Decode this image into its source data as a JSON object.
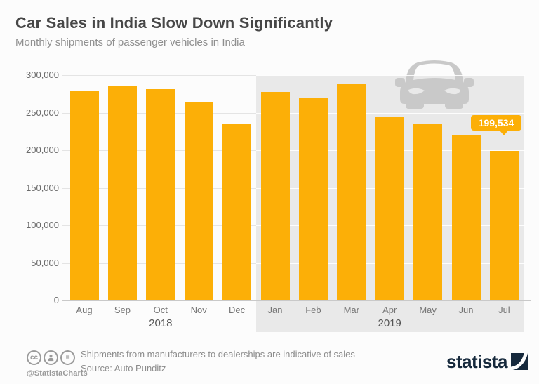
{
  "header": {
    "title": "Car Sales in India Slow Down Significantly",
    "subtitle": "Monthly shipments of passenger vehicles in India"
  },
  "chart_data": {
    "type": "bar",
    "title": "Car Sales in India Slow Down Significantly",
    "subtitle": "Monthly shipments of passenger vehicles in India",
    "categories": [
      "Aug",
      "Sep",
      "Oct",
      "Nov",
      "Dec",
      "Jan",
      "Feb",
      "Mar",
      "Apr",
      "May",
      "Jun",
      "Jul"
    ],
    "values": [
      280000,
      285000,
      282000,
      264000,
      236000,
      278000,
      269000,
      288000,
      245000,
      236000,
      221000,
      199534
    ],
    "year_groups": [
      {
        "label": "2018",
        "from": 0,
        "to": 4,
        "shaded": false
      },
      {
        "label": "2019",
        "from": 5,
        "to": 11,
        "shaded": true
      }
    ],
    "y_axis": {
      "ticks": [
        {
          "value": 300000,
          "label": "300,000"
        },
        {
          "value": 250000,
          "label": "250,000"
        },
        {
          "value": 200000,
          "label": "200,000"
        },
        {
          "value": 150000,
          "label": "150,000"
        },
        {
          "value": 100000,
          "label": "100,000"
        },
        {
          "value": 50000,
          "label": "50,000"
        },
        {
          "value": 0,
          "label": "0"
        }
      ],
      "ylim": [
        0,
        300000
      ],
      "grid": true
    },
    "highlight": {
      "category": "Jul",
      "index": 11,
      "value": 199534,
      "label": "199,534"
    },
    "legend": null,
    "colors": {
      "bar": "#FCAF07",
      "band": "#E9E9E9",
      "callout": "#FCAF07",
      "car_icon": "#C9C9C9"
    }
  },
  "footer": {
    "license": {
      "cc_glyph": "cc",
      "nd_glyph": "=",
      "handle": "@StatistaCharts"
    },
    "note": "Shipments from manufacturers to dealerships are indicative of sales",
    "source": "Source: Auto Punditz",
    "brand": {
      "wordmark": "statista",
      "color": "#16293C"
    }
  }
}
